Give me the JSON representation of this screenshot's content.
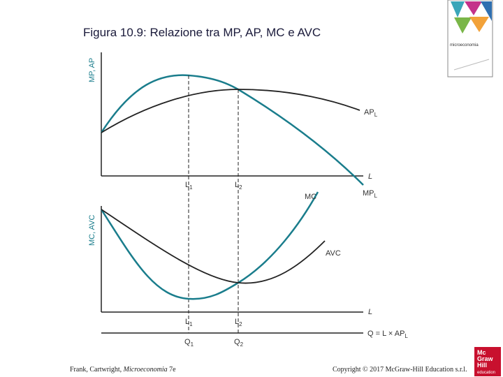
{
  "header": {
    "title": "Figura 10.9: Relazione tra MP, AP, MC e AVC"
  },
  "top_panel": {
    "y_axis": "MP, AP",
    "x_axis": "L",
    "ticks": [
      {
        "text": "L",
        "sub": "1"
      },
      {
        "text": "L",
        "sub": "2"
      }
    ],
    "curves": [
      {
        "text": "AP",
        "sub": "L"
      },
      {
        "text": "MP",
        "sub": "L"
      }
    ]
  },
  "bottom_panel": {
    "y_axis": "MC, AVC",
    "x_axis": "L",
    "ticks": [
      {
        "text": "L",
        "sub": "1"
      },
      {
        "text": "L",
        "sub": "2"
      }
    ],
    "curves": [
      "MC",
      "AVC"
    ],
    "q_ticks": [
      {
        "text": "Q",
        "sub": "1"
      },
      {
        "text": "Q",
        "sub": "2"
      }
    ],
    "q_axis": {
      "text": "Q = L × AP",
      "sub": "L"
    }
  },
  "footer": {
    "left": [
      "Frank, Cartwright, ",
      "Microeconomia",
      " 7e"
    ],
    "right": "Copyright © 2017 McGraw-Hill Education s.r.l."
  },
  "cover": {
    "title": "microeconomia"
  },
  "logo": [
    "Mc",
    "Graw",
    "Hill",
    "education"
  ]
}
